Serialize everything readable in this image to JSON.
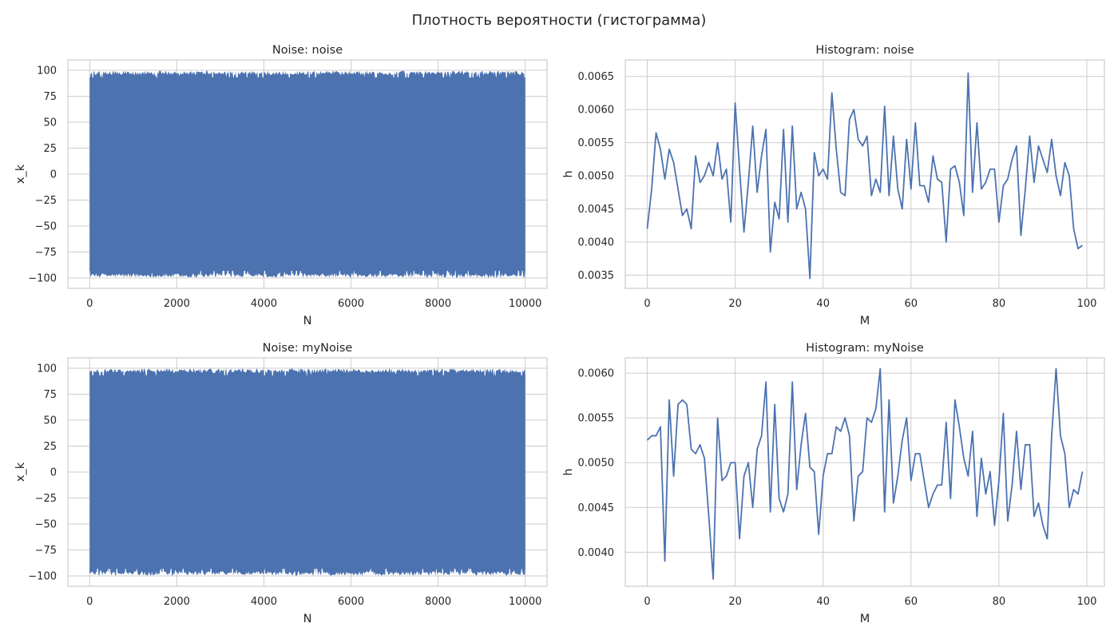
{
  "suptitle": "Плотность вероятности (гистограмма)",
  "colors": {
    "series": "#4c72b0",
    "grid": "#cccccc",
    "text": "#262626"
  },
  "chart_data": [
    {
      "id": "noise-signal",
      "type": "line",
      "title": "Noise: noise",
      "xlabel": "N",
      "ylabel": "x_k",
      "xlim": [
        -500,
        10500
      ],
      "ylim": [
        -110,
        110
      ],
      "xticks": [
        0,
        2000,
        4000,
        6000,
        8000,
        10000
      ],
      "xtick_labels": [
        "0",
        "2000",
        "4000",
        "6000",
        "8000",
        "10000"
      ],
      "yticks": [
        -100,
        -75,
        -50,
        -25,
        0,
        25,
        50,
        75,
        100
      ],
      "ytick_labels": [
        "−100",
        "−75",
        "−50",
        "−25",
        "0",
        "25",
        "50",
        "75",
        "100"
      ],
      "signal": {
        "n_samples": 10000,
        "min": -100,
        "max": 100,
        "distribution": "uniform"
      }
    },
    {
      "id": "noise-hist",
      "type": "line",
      "title": "Histogram: noise",
      "xlabel": "M",
      "ylabel": "h",
      "xlim": [
        -5,
        104
      ],
      "ylim": [
        0.0033,
        0.00675
      ],
      "xticks": [
        0,
        20,
        40,
        60,
        80,
        100
      ],
      "xtick_labels": [
        "0",
        "20",
        "40",
        "60",
        "80",
        "100"
      ],
      "yticks": [
        0.0035,
        0.004,
        0.0045,
        0.005,
        0.0055,
        0.006,
        0.0065
      ],
      "ytick_labels": [
        "0.0035",
        "0.0040",
        "0.0045",
        "0.0050",
        "0.0055",
        "0.0060",
        "0.0065"
      ],
      "values": [
        0.0042,
        0.0048,
        0.00565,
        0.0054,
        0.00495,
        0.0054,
        0.0052,
        0.0048,
        0.0044,
        0.0045,
        0.0042,
        0.0053,
        0.0049,
        0.005,
        0.0052,
        0.005,
        0.0055,
        0.00495,
        0.0051,
        0.0043,
        0.0061,
        0.0051,
        0.00415,
        0.0049,
        0.00575,
        0.00475,
        0.0053,
        0.0057,
        0.00385,
        0.0046,
        0.00435,
        0.0057,
        0.0043,
        0.00575,
        0.0045,
        0.00475,
        0.0045,
        0.00345,
        0.00535,
        0.005,
        0.0051,
        0.00495,
        0.00625,
        0.0054,
        0.00475,
        0.0047,
        0.00585,
        0.006,
        0.00555,
        0.00545,
        0.0056,
        0.0047,
        0.00495,
        0.00475,
        0.00605,
        0.0047,
        0.0056,
        0.0048,
        0.0045,
        0.00555,
        0.0048,
        0.0058,
        0.00485,
        0.00485,
        0.0046,
        0.0053,
        0.00495,
        0.0049,
        0.004,
        0.0051,
        0.00515,
        0.0049,
        0.0044,
        0.00655,
        0.00475,
        0.0058,
        0.0048,
        0.0049,
        0.0051,
        0.0051,
        0.0043,
        0.00485,
        0.00495,
        0.00525,
        0.00545,
        0.0041,
        0.0048,
        0.0056,
        0.0049,
        0.00545,
        0.00525,
        0.00505,
        0.00555,
        0.005,
        0.0047,
        0.0052,
        0.005,
        0.0042,
        0.0039,
        0.00395
      ]
    },
    {
      "id": "mynoise-signal",
      "type": "line",
      "title": "Noise: myNoise",
      "xlabel": "N",
      "ylabel": "x_k",
      "xlim": [
        -500,
        10500
      ],
      "ylim": [
        -110,
        110
      ],
      "xticks": [
        0,
        2000,
        4000,
        6000,
        8000,
        10000
      ],
      "xtick_labels": [
        "0",
        "2000",
        "4000",
        "6000",
        "8000",
        "10000"
      ],
      "yticks": [
        -100,
        -75,
        -50,
        -25,
        0,
        25,
        50,
        75,
        100
      ],
      "ytick_labels": [
        "−100",
        "−75",
        "−50",
        "−25",
        "0",
        "25",
        "50",
        "75",
        "100"
      ],
      "signal": {
        "n_samples": 10000,
        "min": -100,
        "max": 100,
        "distribution": "uniform"
      }
    },
    {
      "id": "mynoise-hist",
      "type": "line",
      "title": "Histogram: myNoise",
      "xlabel": "M",
      "ylabel": "h",
      "xlim": [
        -5,
        104
      ],
      "ylim": [
        0.00362,
        0.00617
      ],
      "xticks": [
        0,
        20,
        40,
        60,
        80,
        100
      ],
      "xtick_labels": [
        "0",
        "20",
        "40",
        "60",
        "80",
        "100"
      ],
      "yticks": [
        0.004,
        0.0045,
        0.005,
        0.0055,
        0.006
      ],
      "ytick_labels": [
        "0.0040",
        "0.0045",
        "0.0050",
        "0.0055",
        "0.0060"
      ],
      "values": [
        0.00525,
        0.0053,
        0.0053,
        0.0054,
        0.0039,
        0.0057,
        0.00485,
        0.00565,
        0.0057,
        0.00565,
        0.00515,
        0.0051,
        0.0052,
        0.00505,
        0.0044,
        0.0037,
        0.0055,
        0.0048,
        0.00485,
        0.005,
        0.005,
        0.00415,
        0.00485,
        0.005,
        0.0045,
        0.00515,
        0.0053,
        0.0059,
        0.00445,
        0.00565,
        0.0046,
        0.00445,
        0.00465,
        0.0059,
        0.0047,
        0.0052,
        0.00555,
        0.00495,
        0.0049,
        0.0042,
        0.00485,
        0.0051,
        0.0051,
        0.0054,
        0.00535,
        0.0055,
        0.0053,
        0.00435,
        0.00485,
        0.0049,
        0.0055,
        0.00545,
        0.0056,
        0.00605,
        0.00445,
        0.0057,
        0.00455,
        0.00485,
        0.00525,
        0.0055,
        0.0048,
        0.0051,
        0.0051,
        0.0048,
        0.0045,
        0.00465,
        0.00475,
        0.00475,
        0.00545,
        0.0046,
        0.0057,
        0.0054,
        0.00505,
        0.00485,
        0.00535,
        0.0044,
        0.00505,
        0.00465,
        0.0049,
        0.0043,
        0.0048,
        0.00555,
        0.00435,
        0.00475,
        0.00535,
        0.0047,
        0.0052,
        0.0052,
        0.0044,
        0.00455,
        0.0043,
        0.00415,
        0.0053,
        0.00605,
        0.0053,
        0.0051,
        0.0045,
        0.0047,
        0.00465,
        0.0049
      ]
    }
  ]
}
